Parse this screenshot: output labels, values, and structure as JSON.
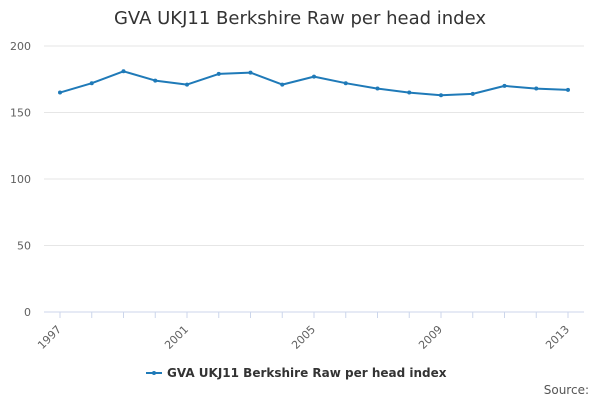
{
  "chart_data": {
    "type": "line",
    "title": "GVA UKJ11 Berkshire Raw per head index",
    "xlabel": "",
    "ylabel": "",
    "x": [
      1997,
      1998,
      1999,
      2000,
      2001,
      2002,
      2003,
      2004,
      2005,
      2006,
      2007,
      2008,
      2009,
      2010,
      2011,
      2012,
      2013
    ],
    "series": [
      {
        "name": "GVA UKJ11 Berkshire Raw per head index",
        "values": [
          165,
          172,
          181,
          174,
          171,
          179,
          180,
          171,
          177,
          172,
          168,
          165,
          163,
          164,
          170,
          168,
          167
        ]
      }
    ],
    "ylim": [
      0,
      200
    ],
    "yticks": [
      0,
      50,
      100,
      150,
      200
    ],
    "xtick_labels": [
      "1997",
      "2001",
      "2005",
      "2009",
      "2013"
    ],
    "grid": true,
    "legend_position": "bottom-center",
    "series_color": "#1f7ab8",
    "credit": "Source:"
  }
}
